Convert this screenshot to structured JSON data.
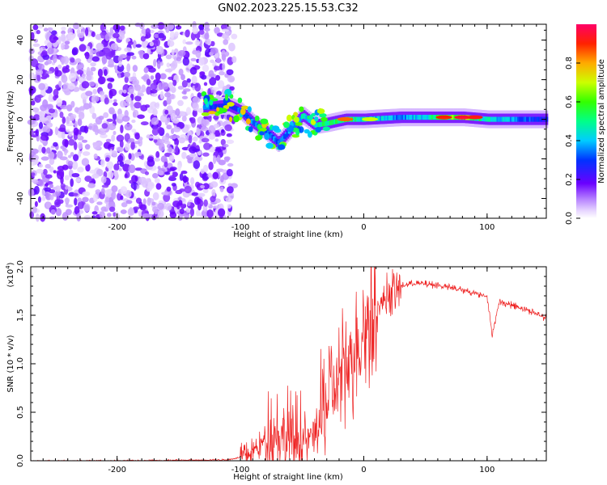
{
  "title": "GN02.2023.225.15.53.C32",
  "chart_data": [
    {
      "type": "heatmap",
      "xlabel": "Height of straight line (km)",
      "ylabel": "Frequency (Hz)",
      "xlim": [
        -270,
        148
      ],
      "ylim": [
        -50,
        48
      ],
      "xticks": [
        -200,
        -100,
        0,
        100
      ],
      "yticks": [
        -40,
        -20,
        0,
        20,
        40
      ],
      "xtick_labels": [
        "-200",
        "-100",
        "0",
        "100"
      ],
      "ytick_labels": [
        "-40",
        "-20",
        "0",
        "20",
        "40"
      ],
      "colorbar": {
        "label": "Normalized spectral amplitude",
        "range": [
          0,
          1
        ],
        "ticks": [
          0,
          0.2,
          0.4,
          0.6,
          0.8
        ],
        "tick_labels": [
          "0.0",
          "0.2",
          "0.4",
          "0.6",
          "0.8"
        ]
      },
      "regions": {
        "noise": {
          "x": [
            -270,
            -110
          ],
          "y": [
            -50,
            48
          ],
          "amplitude": 0.2
        },
        "main_trace": [
          {
            "x": -130,
            "y": 6,
            "a": 0.45
          },
          {
            "x": -110,
            "y": 7,
            "a": 0.35
          },
          {
            "x": -100,
            "y": 4,
            "a": 0.5
          },
          {
            "x": -90,
            "y": -2,
            "a": 0.45
          },
          {
            "x": -80,
            "y": -6,
            "a": 0.5
          },
          {
            "x": -70,
            "y": -12,
            "a": 0.45
          },
          {
            "x": -60,
            "y": -5,
            "a": 0.5
          },
          {
            "x": -50,
            "y": 2,
            "a": 0.6
          },
          {
            "x": -40,
            "y": -3,
            "a": 0.65
          },
          {
            "x": -30,
            "y": -2,
            "a": 0.7
          },
          {
            "x": -15,
            "y": 0,
            "a": 0.75
          },
          {
            "x": 0,
            "y": 0,
            "a": 0.6
          },
          {
            "x": 30,
            "y": 1,
            "a": 0.5
          },
          {
            "x": 60,
            "y": 1,
            "a": 0.7
          },
          {
            "x": 80,
            "y": 1,
            "a": 0.9
          },
          {
            "x": 100,
            "y": 0,
            "a": 0.6
          },
          {
            "x": 148,
            "y": 0,
            "a": 0.35
          }
        ]
      }
    },
    {
      "type": "line",
      "xlabel": "Height of straight line (km)",
      "ylabel": "SNR (10 * v/v)",
      "multiplier_label": "(x10",
      "multiplier_exp": "4",
      "multiplier_close": ")",
      "xlim": [
        -270,
        148
      ],
      "ylim": [
        0,
        2.0
      ],
      "xticks": [
        -200,
        -100,
        0,
        100
      ],
      "yticks": [
        0,
        0.5,
        1.0,
        1.5,
        2.0
      ],
      "xtick_labels": [
        "-200",
        "-100",
        "0",
        "100"
      ],
      "ytick_labels": [
        "0.0",
        "0.5",
        "1.0",
        "1.5",
        "2.0"
      ],
      "color": "#ee2222",
      "envelope": {
        "x": [
          -270,
          -200,
          -110,
          -95,
          -85,
          -75,
          -65,
          -55,
          -45,
          -35,
          -25,
          -15,
          -8,
          0,
          10,
          20,
          30,
          40,
          60,
          80,
          100,
          104,
          110,
          130,
          148
        ],
        "y": [
          0.0,
          0.0,
          0.01,
          0.05,
          0.15,
          0.3,
          0.28,
          0.2,
          0.22,
          0.4,
          0.75,
          0.95,
          1.15,
          1.35,
          1.55,
          1.72,
          1.8,
          1.83,
          1.81,
          1.76,
          1.7,
          1.3,
          1.64,
          1.57,
          1.47
        ]
      },
      "noise_amplitude": [
        {
          "from": -270,
          "to": -100,
          "amp": 0.008
        },
        {
          "from": -100,
          "to": -80,
          "amp": 0.15
        },
        {
          "from": -80,
          "to": -50,
          "amp": 0.55
        },
        {
          "from": -50,
          "to": -35,
          "amp": 0.3
        },
        {
          "from": -35,
          "to": 10,
          "amp": 0.75
        },
        {
          "from": 10,
          "to": 30,
          "amp": 0.25
        },
        {
          "from": 30,
          "to": 148,
          "amp": 0.04
        }
      ]
    }
  ]
}
